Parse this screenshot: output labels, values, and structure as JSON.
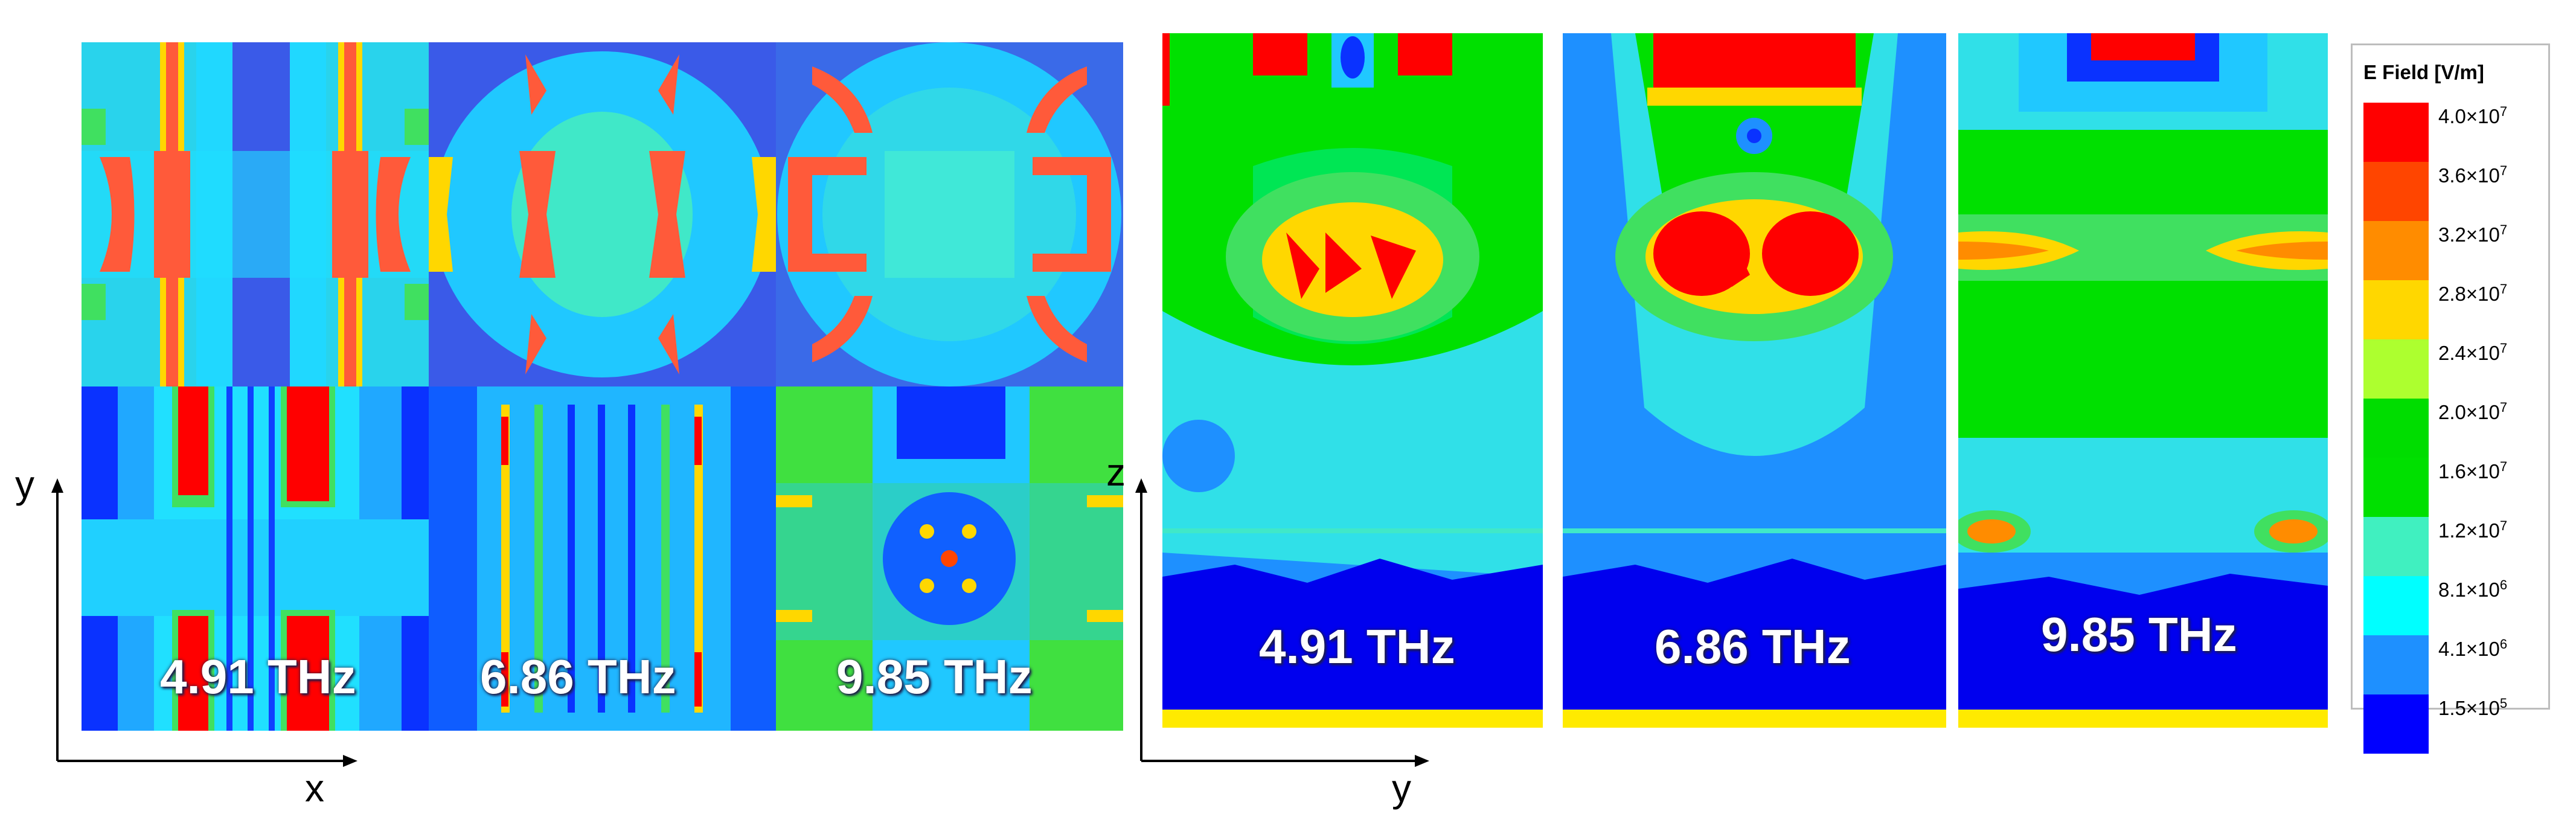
{
  "left_group": {
    "frequencies": [
      "4.91 THz",
      "6.86 THz",
      "9.85 THz"
    ],
    "axis_x": "x",
    "axis_y": "y"
  },
  "right_group": {
    "frequencies": [
      "4.91 THz",
      "6.86 THz",
      "9.85 THz"
    ],
    "axis_horizontal": "y",
    "axis_vertical": "z"
  },
  "legend": {
    "title": "E Field [V/m]",
    "ticks": [
      {
        "mantissa": "4.0×10",
        "exp": "7"
      },
      {
        "mantissa": "3.6×10",
        "exp": "7"
      },
      {
        "mantissa": "3.2×10",
        "exp": "7"
      },
      {
        "mantissa": "2.8×10",
        "exp": "7"
      },
      {
        "mantissa": "2.4×10",
        "exp": "7"
      },
      {
        "mantissa": "2.0×10",
        "exp": "7"
      },
      {
        "mantissa": "1.6×10",
        "exp": "7"
      },
      {
        "mantissa": "1.2×10",
        "exp": "7"
      },
      {
        "mantissa": "8.1×10",
        "exp": "6"
      },
      {
        "mantissa": "4.1×10",
        "exp": "6"
      },
      {
        "mantissa": "1.5×10",
        "exp": "5"
      }
    ],
    "colors": [
      "#ff0000",
      "#ff4500",
      "#ff8c00",
      "#ffd700",
      "#adff2f",
      "#00dd00",
      "#00e000",
      "#40f0c0",
      "#00ffff",
      "#1e90ff",
      "#0000ff"
    ]
  }
}
